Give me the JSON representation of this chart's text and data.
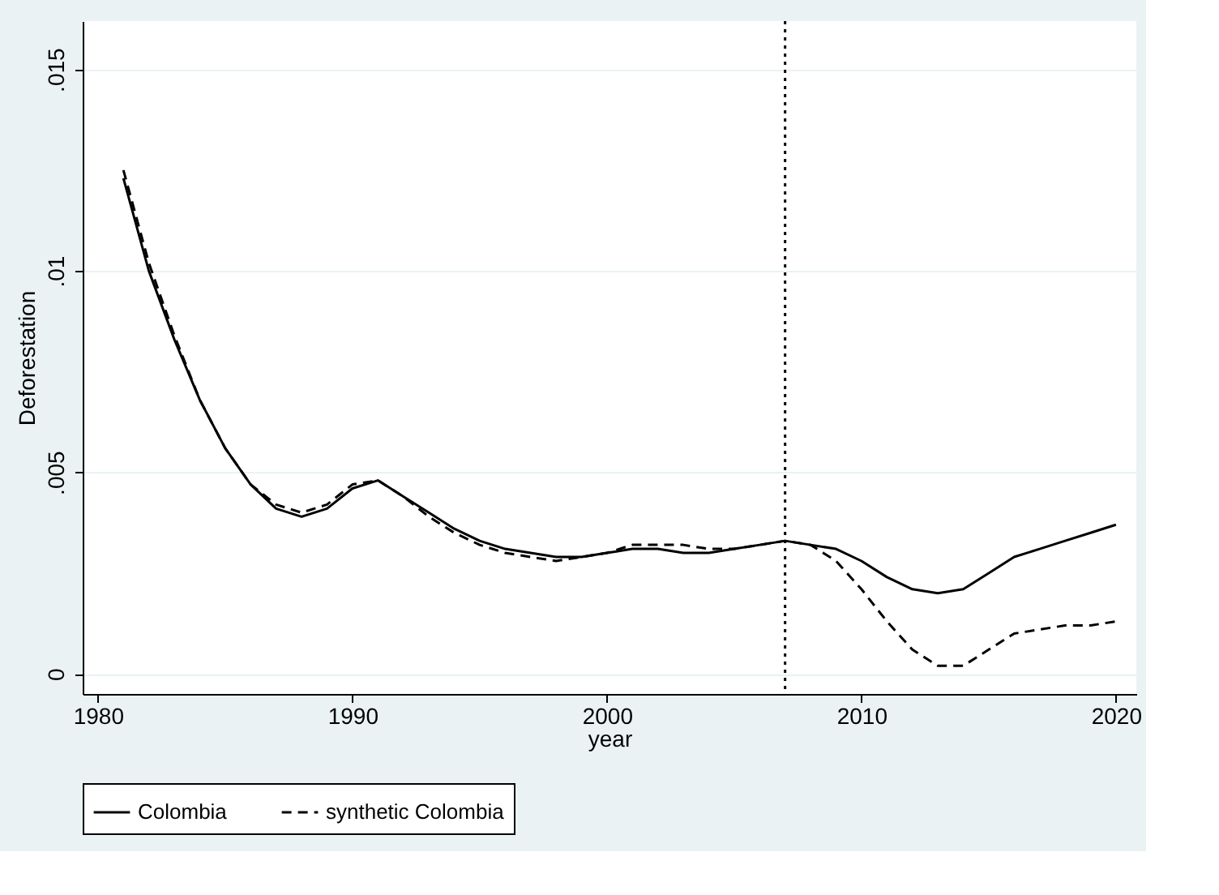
{
  "chart_data": {
    "type": "line",
    "xlabel": "year",
    "ylabel": "Deforestation",
    "x": [
      1981,
      1982,
      1983,
      1984,
      1985,
      1986,
      1987,
      1988,
      1989,
      1990,
      1991,
      1992,
      1993,
      1994,
      1995,
      1996,
      1997,
      1998,
      1999,
      2000,
      2001,
      2002,
      2003,
      2004,
      2005,
      2006,
      2007,
      2008,
      2009,
      2010,
      2011,
      2012,
      2013,
      2014,
      2015,
      2016,
      2017,
      2018,
      2019,
      2020
    ],
    "series": [
      {
        "name": "Colombia",
        "color": "#000000",
        "line_style": "solid",
        "values": [
          0.0123,
          0.01,
          0.0083,
          0.0068,
          0.0056,
          0.0047,
          0.0041,
          0.0039,
          0.0041,
          0.0046,
          0.0048,
          0.0044,
          0.004,
          0.0036,
          0.0033,
          0.0031,
          0.003,
          0.0029,
          0.0029,
          0.003,
          0.0031,
          0.0031,
          0.003,
          0.003,
          0.0031,
          0.0032,
          0.0033,
          0.0032,
          0.0031,
          0.0028,
          0.0024,
          0.0021,
          0.002,
          0.0021,
          0.0025,
          0.0029,
          0.0031,
          0.0033,
          0.0035,
          0.0037
        ]
      },
      {
        "name": "synthetic Colombia",
        "color": "#000000",
        "line_style": "dashed",
        "values": [
          0.0125,
          0.0102,
          0.0084,
          0.0068,
          0.0056,
          0.0047,
          0.0042,
          0.004,
          0.0042,
          0.0047,
          0.0048,
          0.0044,
          0.0039,
          0.0035,
          0.0032,
          0.003,
          0.0029,
          0.0028,
          0.0029,
          0.003,
          0.0032,
          0.0032,
          0.0032,
          0.0031,
          0.0031,
          0.0032,
          0.0033,
          0.0032,
          0.0028,
          0.0021,
          0.0013,
          0.0006,
          0.0002,
          0.0002,
          0.0006,
          0.001,
          0.0011,
          0.0012,
          0.0012,
          0.0013
        ]
      }
    ],
    "xlim": [
      1979.4,
      2020.8
    ],
    "xticks": [
      1980,
      1990,
      2000,
      2010,
      2020
    ],
    "ylim": [
      -0.0005,
      0.0162
    ],
    "yticks": [
      {
        "value": 0,
        "label": "0"
      },
      {
        "value": 0.005,
        "label": ".005"
      },
      {
        "value": 0.01,
        "label": ".01"
      },
      {
        "value": 0.015,
        "label": ".015"
      }
    ],
    "ref_lines": [
      {
        "axis": "x",
        "value": 2007,
        "label": null,
        "line_style": "dotted"
      }
    ],
    "grid": "y",
    "legend": "bottom"
  }
}
